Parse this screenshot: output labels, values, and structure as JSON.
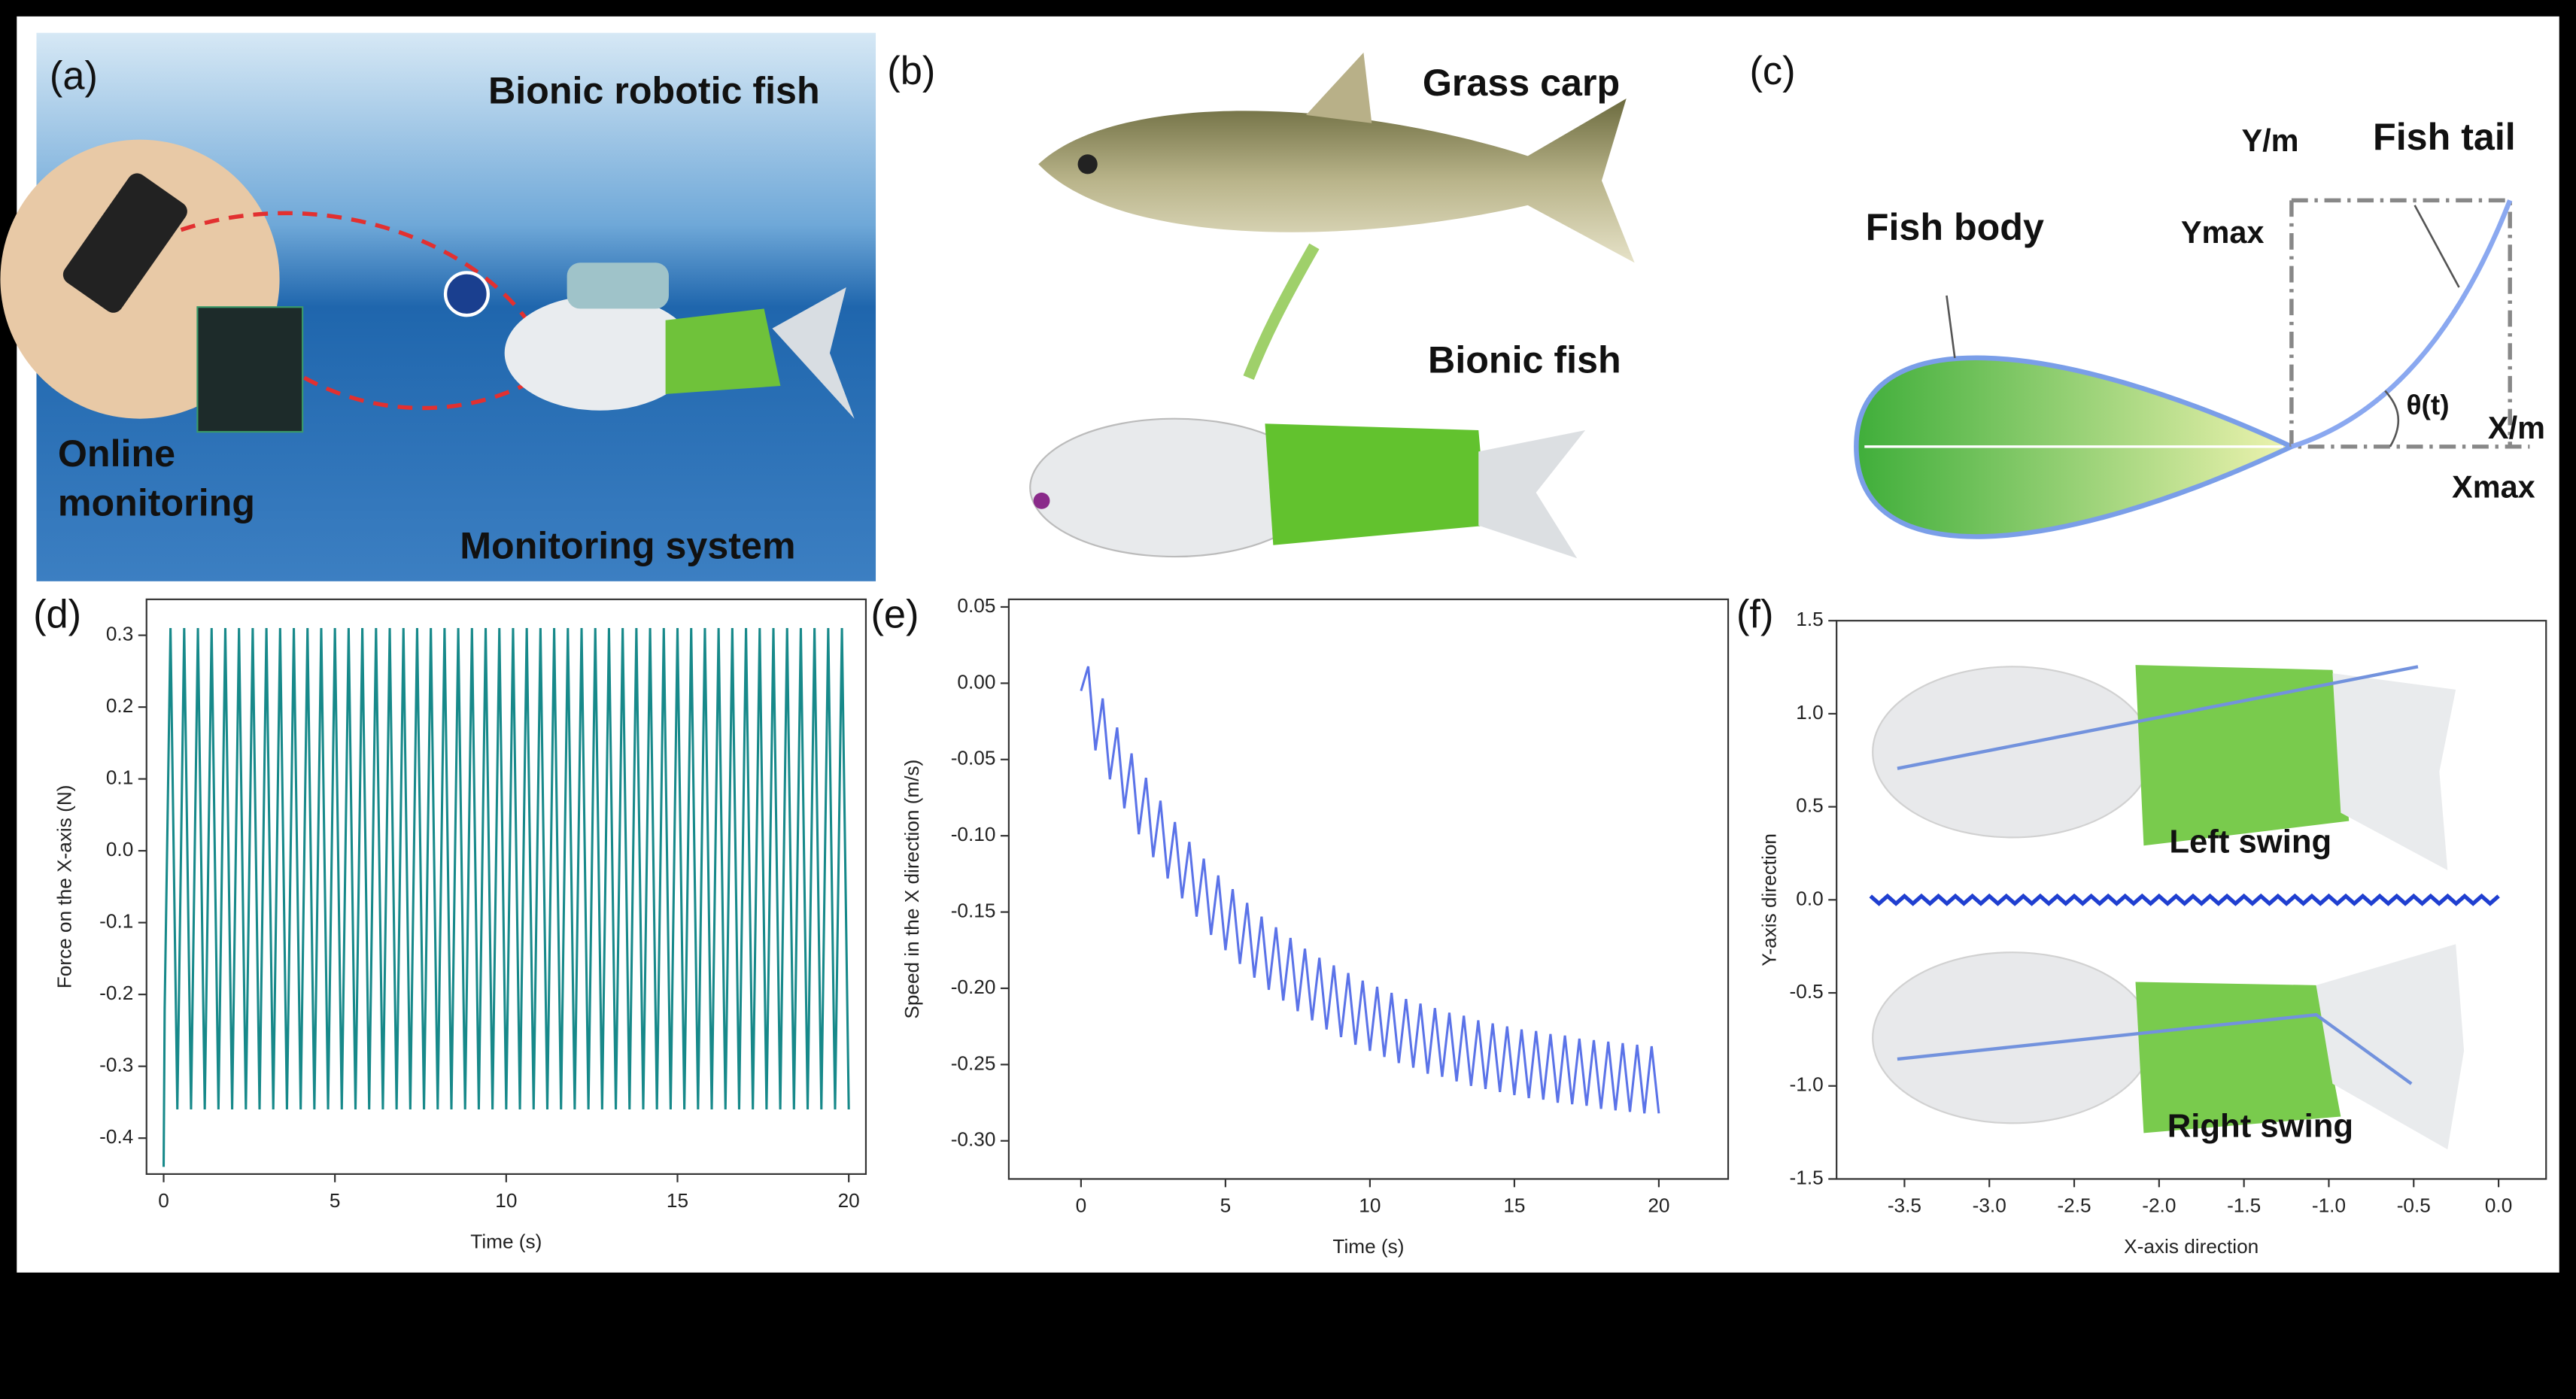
{
  "figure": {
    "a": {
      "label": "(a)",
      "title": "Bionic robotic fish",
      "monitor_lines": [
        "Online",
        "monitoring"
      ],
      "bottom": "Monitoring system"
    },
    "b": {
      "label": "(b)",
      "top": "Grass carp",
      "bottom": "Bionic fish"
    },
    "c": {
      "label": "(c)",
      "y_axis": "Y/m",
      "tail": "Fish tail",
      "body": "Fish body",
      "ymax": "Ymax",
      "angle": "θ(t)",
      "x_axis": "X/m",
      "xmax": "Xmax"
    }
  },
  "chart_data": [
    {
      "type": "line",
      "label": "(d)",
      "xlabel": "Time (s)",
      "ylabel": "Force on the X-axis (N)",
      "color": "#17898a",
      "xlim": [
        -0.5,
        20.5
      ],
      "ylim": [
        -0.45,
        0.35
      ],
      "xticks": [
        0,
        5,
        10,
        15,
        20
      ],
      "yticks": [
        -0.4,
        -0.3,
        -0.2,
        -0.1,
        {
          "value": 0,
          "label": "0.0"
        },
        0.1,
        0.2,
        0.3
      ],
      "x": [
        0,
        0.03,
        0.2,
        0.4,
        0.6,
        0.8,
        1,
        1.2,
        1.4,
        1.6,
        1.8,
        2,
        2.2,
        2.4,
        2.6,
        2.8,
        3,
        3.2,
        3.4,
        3.6,
        3.8,
        4,
        4.2,
        4.4,
        4.6,
        4.8,
        5,
        5.2,
        5.4,
        5.6,
        5.8,
        6,
        6.2,
        6.4,
        6.6,
        6.8,
        7,
        7.2,
        7.4,
        7.6,
        7.8,
        8,
        8.2,
        8.4,
        8.6,
        8.8,
        9,
        9.2,
        9.4,
        9.6,
        9.8,
        10,
        10.2,
        10.4,
        10.6,
        10.8,
        11,
        11.2,
        11.4,
        11.6,
        11.8,
        12,
        12.2,
        12.4,
        12.6,
        12.8,
        13,
        13.2,
        13.4,
        13.6,
        13.8,
        14,
        14.2,
        14.4,
        14.6,
        14.8,
        15,
        15.2,
        15.4,
        15.6,
        15.8,
        16,
        16.2,
        16.4,
        16.6,
        16.8,
        17,
        17.2,
        17.4,
        17.6,
        17.8,
        18,
        18.2,
        18.4,
        18.6,
        18.8,
        19,
        19.2,
        19.4,
        19.6,
        19.8,
        20
      ],
      "values": [
        -0.44,
        -0.22,
        0.31,
        -0.36,
        0.31,
        -0.36,
        0.31,
        -0.36,
        0.31,
        -0.36,
        0.31,
        -0.36,
        0.31,
        -0.36,
        0.31,
        -0.36,
        0.31,
        -0.36,
        0.31,
        -0.36,
        0.31,
        -0.36,
        0.31,
        -0.36,
        0.31,
        -0.36,
        0.31,
        -0.36,
        0.31,
        -0.36,
        0.31,
        -0.36,
        0.31,
        -0.36,
        0.31,
        -0.36,
        0.31,
        -0.36,
        0.31,
        -0.36,
        0.31,
        -0.36,
        0.31,
        -0.36,
        0.31,
        -0.36,
        0.31,
        -0.36,
        0.31,
        -0.36,
        0.31,
        -0.36,
        0.31,
        -0.36,
        0.31,
        -0.36,
        0.31,
        -0.36,
        0.31,
        -0.36,
        0.31,
        -0.36,
        0.31,
        -0.36,
        0.31,
        -0.36,
        0.31,
        -0.36,
        0.31,
        -0.36,
        0.31,
        -0.36,
        0.31,
        -0.36,
        0.31,
        -0.36,
        0.31,
        -0.36,
        0.31,
        -0.36,
        0.31,
        -0.36,
        0.31,
        -0.36,
        0.31,
        -0.36,
        0.31,
        -0.36,
        0.31,
        -0.36,
        0.31,
        -0.36,
        0.31,
        -0.36,
        0.31,
        -0.36,
        0.31,
        -0.36,
        0.31,
        -0.36,
        0.31,
        -0.36
      ]
    },
    {
      "type": "line",
      "label": "(e)",
      "xlabel": "Time (s)",
      "ylabel": "Speed in the X direction (m/s)",
      "color": "#5b73e8",
      "xlim": [
        -2.5,
        22.4
      ],
      "ylim": [
        -0.325,
        0.055
      ],
      "xticks": [
        0,
        5,
        10,
        15,
        20
      ],
      "yticks": [
        {
          "value": -0.3,
          "label": "-0.30"
        },
        -0.25,
        {
          "value": -0.2,
          "label": "-0.20"
        },
        -0.15,
        {
          "value": -0.1,
          "label": "-0.10"
        },
        -0.05,
        {
          "value": 0,
          "label": "0.00"
        },
        0.05
      ],
      "x": [
        0,
        0.25,
        0.5,
        0.75,
        1,
        1.25,
        1.5,
        1.75,
        2,
        2.25,
        2.5,
        2.75,
        3,
        3.25,
        3.5,
        3.75,
        4,
        4.25,
        4.5,
        4.75,
        5,
        5.25,
        5.5,
        5.75,
        6,
        6.25,
        6.5,
        6.75,
        7,
        7.25,
        7.5,
        7.75,
        8,
        8.25,
        8.5,
        8.75,
        9,
        9.25,
        9.5,
        9.75,
        10,
        10.25,
        10.5,
        10.75,
        11,
        11.25,
        11.5,
        11.75,
        12,
        12.25,
        12.5,
        12.75,
        13,
        13.25,
        13.5,
        13.75,
        14,
        14.25,
        14.5,
        14.75,
        15,
        15.25,
        15.5,
        15.75,
        16,
        16.25,
        16.5,
        16.75,
        17,
        17.25,
        17.5,
        17.75,
        18,
        18.25,
        18.5,
        18.75,
        19,
        19.25,
        19.5,
        19.75,
        20
      ],
      "values": [
        -0.005,
        0.011,
        -0.044,
        -0.01,
        -0.063,
        -0.029,
        -0.082,
        -0.046,
        -0.099,
        -0.062,
        -0.114,
        -0.077,
        -0.128,
        -0.091,
        -0.141,
        -0.104,
        -0.153,
        -0.115,
        -0.165,
        -0.126,
        -0.175,
        -0.135,
        -0.184,
        -0.144,
        -0.193,
        -0.153,
        -0.201,
        -0.16,
        -0.208,
        -0.167,
        -0.215,
        -0.174,
        -0.221,
        -0.18,
        -0.227,
        -0.185,
        -0.232,
        -0.19,
        -0.237,
        -0.195,
        -0.241,
        -0.199,
        -0.245,
        -0.203,
        -0.249,
        -0.207,
        -0.252,
        -0.21,
        -0.256,
        -0.213,
        -0.258,
        -0.216,
        -0.261,
        -0.218,
        -0.264,
        -0.221,
        -0.266,
        -0.223,
        -0.268,
        -0.225,
        -0.27,
        -0.227,
        -0.272,
        -0.228,
        -0.273,
        -0.23,
        -0.275,
        -0.231,
        -0.276,
        -0.233,
        -0.277,
        -0.234,
        -0.279,
        -0.235,
        -0.28,
        -0.236,
        -0.281,
        -0.237,
        -0.282,
        -0.238,
        -0.282
      ]
    },
    {
      "type": "line",
      "label": "(f)",
      "xlabel": "X-axis direction",
      "ylabel": "Y-axis direction",
      "color": "#1f3fd0",
      "annotations": [
        "Left swing",
        "Right swing"
      ],
      "xlim": [
        -3.9,
        0.28
      ],
      "ylim": [
        -1.5,
        1.5
      ],
      "xticks": [
        -3.5,
        {
          "value": -3,
          "label": "-3.0"
        },
        -2.5,
        {
          "value": -2,
          "label": "-2.0"
        },
        -1.5,
        {
          "value": -1,
          "label": "-1.0"
        },
        -0.5,
        {
          "value": 0,
          "label": "0.0"
        }
      ],
      "yticks": [
        -1.5,
        {
          "value": -1,
          "label": "-1.0"
        },
        -0.5,
        {
          "value": 0,
          "label": "0.0"
        },
        0.5,
        {
          "value": 1,
          "label": "1.0"
        },
        1.5
      ],
      "x": [
        -3.7,
        -3.65,
        -3.6,
        -3.55,
        -3.5,
        -3.45,
        -3.4,
        -3.35,
        -3.3,
        -3.25,
        -3.2,
        -3.15,
        -3.1,
        -3.05,
        -3,
        -2.95,
        -2.9,
        -2.85,
        -2.8,
        -2.75,
        -2.7,
        -2.65,
        -2.6,
        -2.55,
        -2.5,
        -2.45,
        -2.4,
        -2.35,
        -2.3,
        -2.25,
        -2.2,
        -2.15,
        -2.1,
        -2.05,
        -2,
        -1.95,
        -1.9,
        -1.85,
        -1.8,
        -1.75,
        -1.7,
        -1.65,
        -1.6,
        -1.55,
        -1.5,
        -1.45,
        -1.4,
        -1.35,
        -1.3,
        -1.25,
        -1.2,
        -1.15,
        -1.1,
        -1.05,
        -1,
        -0.95,
        -0.9,
        -0.85,
        -0.8,
        -0.75,
        -0.7,
        -0.65,
        -0.6,
        -0.55,
        -0.5,
        -0.45,
        -0.4,
        -0.35,
        -0.3,
        -0.25,
        -0.2,
        -0.15,
        -0.1,
        -0.05,
        0
      ],
      "values": [
        0.02,
        -0.02,
        0.02,
        -0.02,
        0.02,
        -0.02,
        0.02,
        -0.02,
        0.02,
        -0.02,
        0.02,
        -0.02,
        0.02,
        -0.02,
        0.02,
        -0.02,
        0.02,
        -0.02,
        0.02,
        -0.02,
        0.02,
        -0.02,
        0.02,
        -0.02,
        0.02,
        -0.02,
        0.02,
        -0.02,
        0.02,
        -0.02,
        0.02,
        -0.02,
        0.02,
        -0.02,
        0.02,
        -0.02,
        0.02,
        -0.02,
        0.02,
        -0.02,
        0.02,
        -0.02,
        0.02,
        -0.02,
        0.02,
        -0.02,
        0.02,
        -0.02,
        0.02,
        -0.02,
        0.02,
        -0.02,
        0.02,
        -0.02,
        0.02,
        -0.02,
        0.02,
        -0.02,
        0.02,
        -0.02,
        0.02,
        -0.02,
        0.02,
        -0.02,
        0.02,
        -0.02,
        0.02,
        -0.02,
        0.02,
        -0.02,
        0.02,
        -0.02,
        0.02,
        -0.02,
        0.02
      ]
    }
  ]
}
